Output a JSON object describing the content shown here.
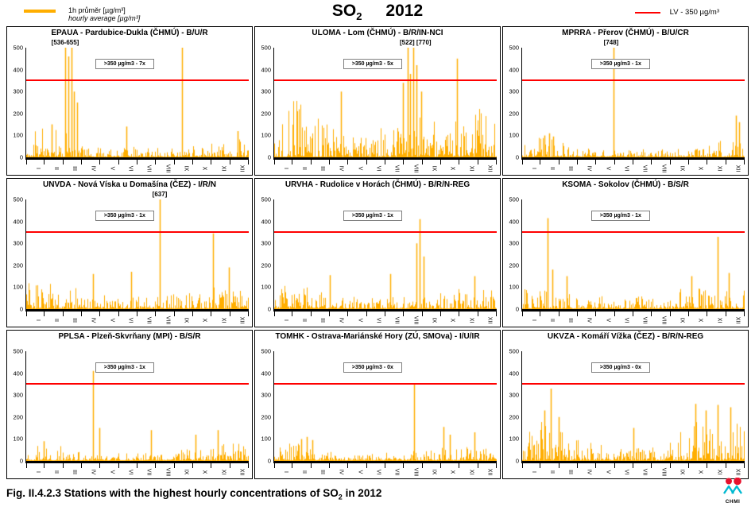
{
  "colors": {
    "series": "#FFAE00",
    "lv": "#FF0000",
    "panel_border": "#000000",
    "box_border": "#7f7f7f"
  },
  "header": {
    "legend_avg": {
      "label_cz": "1h průměr [µg/m³]",
      "label_en": "hourly average [µg/m³]"
    },
    "title": {
      "formula": "SO",
      "formula_sub": "2",
      "year": "2012"
    },
    "legend_lv": {
      "label": "LV - 350 µg/m³"
    }
  },
  "caption": {
    "prefix": "Fig. II.4.2.3  Stations with the highest hourly concentrations of SO",
    "sub": "2",
    "suffix": " in 2012"
  },
  "logo": {
    "label": "CHMI",
    "dot_color": "#e8112d",
    "wave_color": "#00b9d1"
  },
  "axis": {
    "months": [
      "I",
      "II",
      "III",
      "IV",
      "V",
      "VI",
      "VII",
      "VIII",
      "IX",
      "X",
      "XI",
      "XII"
    ],
    "yticks": [
      500,
      400,
      300,
      200,
      100,
      0
    ],
    "ymax": 500,
    "lv_value": 350
  },
  "chart_data": [
    {
      "type": "line",
      "station": "EPAUA - Pardubice-Dukla (ČHMÚ) - B/U/R",
      "exceedance_label": ">350 µg/m3 - 7x",
      "exceedances": 7,
      "peak_label": "[536-655]",
      "peak_label_x": 0.175,
      "seed": 11,
      "envelope": [
        100,
        150,
        120,
        70,
        50,
        40,
        50,
        45,
        55,
        60,
        70,
        90
      ],
      "spikes": [
        [
          0.115,
          150
        ],
        [
          0.175,
          500
        ],
        [
          0.19,
          460
        ],
        [
          0.205,
          500
        ],
        [
          0.215,
          300
        ],
        [
          0.23,
          250
        ],
        [
          0.45,
          140
        ],
        [
          0.7,
          500
        ],
        [
          0.95,
          120
        ]
      ]
    },
    {
      "type": "line",
      "station": "ULOMA - Lom (ČHMÚ) - B/R/IN-NCI",
      "exceedance_label": ">350 µg/m3 - 5x",
      "exceedances": 5,
      "peak_label": "[522] [770]",
      "peak_label_x": 0.635,
      "seed": 22,
      "envelope": [
        250,
        300,
        260,
        180,
        140,
        120,
        140,
        160,
        200,
        180,
        170,
        220
      ],
      "spikes": [
        [
          0.3,
          300
        ],
        [
          0.58,
          340
        ],
        [
          0.6,
          500
        ],
        [
          0.61,
          380
        ],
        [
          0.625,
          500
        ],
        [
          0.64,
          420
        ],
        [
          0.66,
          300
        ],
        [
          0.82,
          450
        ]
      ]
    },
    {
      "type": "line",
      "station": "MPRRA - Přerov (ČHMÚ) - B/U/CR",
      "exceedance_label": ">350 µg/m3 - 1x",
      "exceedances": 1,
      "peak_label": "[748]",
      "peak_label_x": 0.4,
      "seed": 33,
      "envelope": [
        55,
        90,
        70,
        45,
        35,
        30,
        35,
        35,
        40,
        45,
        55,
        90
      ],
      "spikes": [
        [
          0.1,
          100
        ],
        [
          0.12,
          110
        ],
        [
          0.14,
          95
        ],
        [
          0.41,
          500
        ],
        [
          0.96,
          190
        ],
        [
          0.975,
          160
        ]
      ]
    },
    {
      "type": "line",
      "station": "UNVDA - Nová Víska u Domašína (ČEZ) - I/R/N",
      "exceedance_label": ">350 µg/m3 - 1x",
      "exceedances": 1,
      "peak_label": "[637]",
      "peak_label_x": 0.6,
      "seed": 44,
      "envelope": [
        110,
        140,
        120,
        85,
        65,
        55,
        55,
        60,
        70,
        90,
        100,
        115
      ],
      "spikes": [
        [
          0.3,
          160
        ],
        [
          0.47,
          170
        ],
        [
          0.6,
          500
        ],
        [
          0.84,
          345
        ],
        [
          0.91,
          190
        ]
      ]
    },
    {
      "type": "line",
      "station": "URVHA - Rudolice v Horách (ČHMÚ) - B/R/N-REG",
      "exceedance_label": ">350 µg/m3 - 1x",
      "exceedances": 1,
      "peak_label": "",
      "peak_label_x": 0,
      "seed": 55,
      "envelope": [
        90,
        115,
        100,
        75,
        60,
        50,
        50,
        55,
        65,
        80,
        90,
        100
      ],
      "spikes": [
        [
          0.25,
          155
        ],
        [
          0.52,
          160
        ],
        [
          0.64,
          300
        ],
        [
          0.655,
          410
        ],
        [
          0.67,
          240
        ],
        [
          0.9,
          150
        ]
      ]
    },
    {
      "type": "line",
      "station": "KSOMA - Sokolov (ČHMÚ) - B/S/R",
      "exceedance_label": ">350 µg/m3 - 1x",
      "exceedances": 1,
      "peak_label": "",
      "peak_label_x": 0,
      "seed": 66,
      "envelope": [
        85,
        105,
        90,
        70,
        60,
        50,
        55,
        60,
        85,
        105,
        115,
        100
      ],
      "spikes": [
        [
          0.115,
          415
        ],
        [
          0.135,
          180
        ],
        [
          0.2,
          150
        ],
        [
          0.76,
          150
        ],
        [
          0.88,
          330
        ],
        [
          0.93,
          165
        ]
      ]
    },
    {
      "type": "line",
      "station": "PPLSA - Plzeň-Skvrňany (MPI) - B/S/R",
      "exceedance_label": ">350 µg/m3 - 1x",
      "exceedances": 1,
      "peak_label": "",
      "peak_label_x": 0,
      "seed": 77,
      "envelope": [
        55,
        75,
        65,
        45,
        38,
        32,
        32,
        38,
        45,
        60,
        70,
        75
      ],
      "spikes": [
        [
          0.08,
          90
        ],
        [
          0.3,
          410
        ],
        [
          0.33,
          150
        ],
        [
          0.56,
          140
        ],
        [
          0.76,
          120
        ],
        [
          0.86,
          140
        ]
      ]
    },
    {
      "type": "line",
      "station": "TOMHK - Ostrava-Mariánské Hory (ZÚ, SMOva) - I/U/IR",
      "exceedance_label": ">350 µg/m3 - 0x",
      "exceedances": 0,
      "peak_label": "",
      "peak_label_x": 0,
      "seed": 88,
      "envelope": [
        45,
        100,
        55,
        40,
        35,
        30,
        35,
        40,
        45,
        60,
        70,
        55
      ],
      "spikes": [
        [
          0.12,
          100
        ],
        [
          0.145,
          110
        ],
        [
          0.17,
          95
        ],
        [
          0.63,
          350
        ],
        [
          0.76,
          155
        ],
        [
          0.79,
          120
        ],
        [
          0.9,
          130
        ]
      ]
    },
    {
      "type": "line",
      "station": "UKVZA - Komáří Vížka (ČEZ) - B/R/N-REG",
      "exceedance_label": ">350 µg/m3 - 0x",
      "exceedances": 0,
      "peak_label": "",
      "peak_label_x": 0,
      "seed": 99,
      "envelope": [
        130,
        170,
        140,
        95,
        75,
        60,
        60,
        70,
        90,
        170,
        210,
        170
      ],
      "spikes": [
        [
          0.1,
          230
        ],
        [
          0.13,
          330
        ],
        [
          0.165,
          200
        ],
        [
          0.5,
          150
        ],
        [
          0.78,
          260
        ],
        [
          0.825,
          230
        ],
        [
          0.88,
          255
        ],
        [
          0.935,
          245
        ]
      ]
    }
  ]
}
